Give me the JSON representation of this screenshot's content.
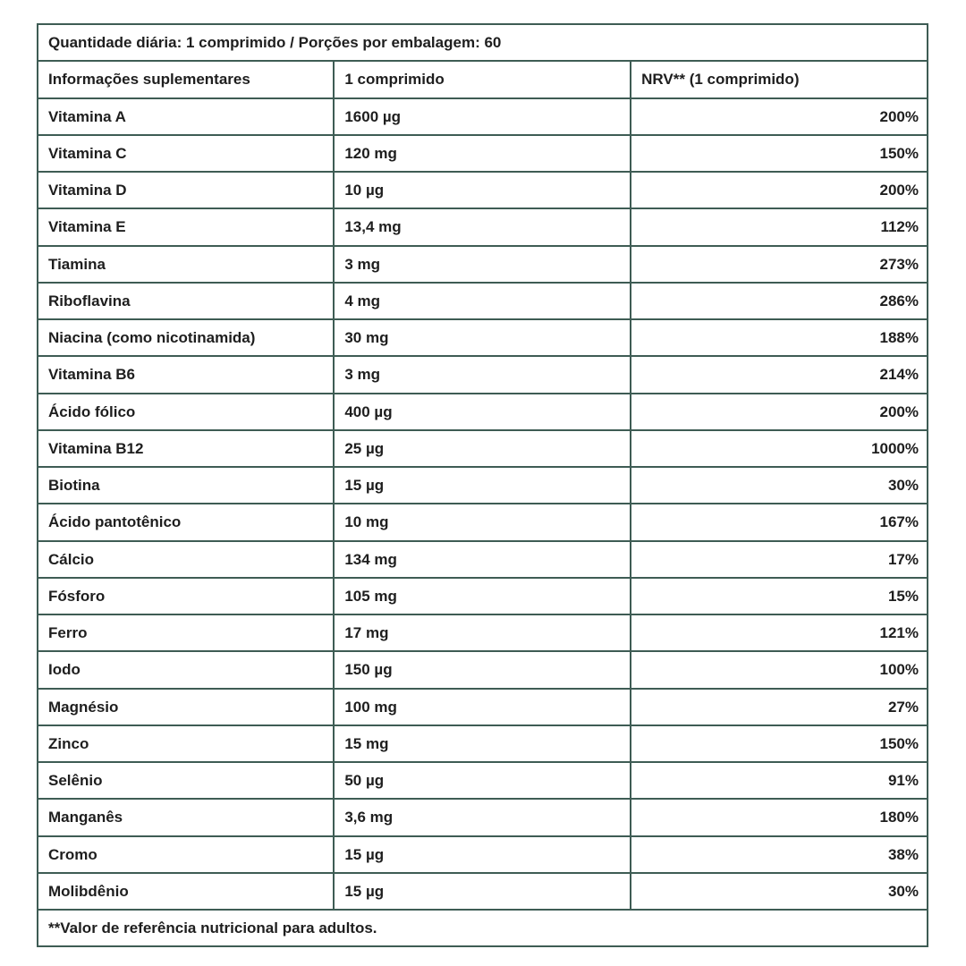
{
  "table": {
    "serving_header": "Quantidade diária: 1 comprimido / Porções por embalagem: 60",
    "columns": {
      "info": "Informações suplementares",
      "amount": "1 comprimido",
      "nrv": "NRV** (1 comprimido)"
    },
    "rows": [
      {
        "name": "Vitamina A",
        "amount": "1600 µg",
        "nrv": "200%"
      },
      {
        "name": "Vitamina C",
        "amount": "120 mg",
        "nrv": "150%"
      },
      {
        "name": "Vitamina D",
        "amount": "10 µg",
        "nrv": "200%"
      },
      {
        "name": "Vitamina E",
        "amount": "13,4 mg",
        "nrv": "112%"
      },
      {
        "name": "Tiamina",
        "amount": "3 mg",
        "nrv": "273%"
      },
      {
        "name": "Riboflavina",
        "amount": "4 mg",
        "nrv": "286%"
      },
      {
        "name": "Niacina (como nicotinamida)",
        "amount": "30 mg",
        "nrv": "188%"
      },
      {
        "name": "Vitamina B6",
        "amount": "3 mg",
        "nrv": "214%"
      },
      {
        "name": "Ácido fólico",
        "amount": "400 µg",
        "nrv": "200%"
      },
      {
        "name": "Vitamina B12",
        "amount": "25 µg",
        "nrv": "1000%"
      },
      {
        "name": "Biotina",
        "amount": "15 µg",
        "nrv": "30%"
      },
      {
        "name": "Ácido pantotênico",
        "amount": "10 mg",
        "nrv": "167%"
      },
      {
        "name": "Cálcio",
        "amount": "134 mg",
        "nrv": "17%"
      },
      {
        "name": "Fósforo",
        "amount": "105 mg",
        "nrv": "15%"
      },
      {
        "name": "Ferro",
        "amount": "17 mg",
        "nrv": "121%"
      },
      {
        "name": "Iodo",
        "amount": "150 µg",
        "nrv": "100%"
      },
      {
        "name": "Magnésio",
        "amount": "100 mg",
        "nrv": "27%"
      },
      {
        "name": "Zinco",
        "amount": "15 mg",
        "nrv": "150%"
      },
      {
        "name": "Selênio",
        "amount": "50 µg",
        "nrv": "91%"
      },
      {
        "name": "Manganês",
        "amount": "3,6 mg",
        "nrv": "180%"
      },
      {
        "name": "Cromo",
        "amount": "15 µg",
        "nrv": "38%"
      },
      {
        "name": "Molibdênio",
        "amount": "15 µg",
        "nrv": "30%"
      }
    ],
    "footnote": "**Valor de referência nutricional para adultos.",
    "colors": {
      "border": "#3e5c54",
      "text": "#1e1e1e",
      "background": "#ffffff"
    }
  }
}
